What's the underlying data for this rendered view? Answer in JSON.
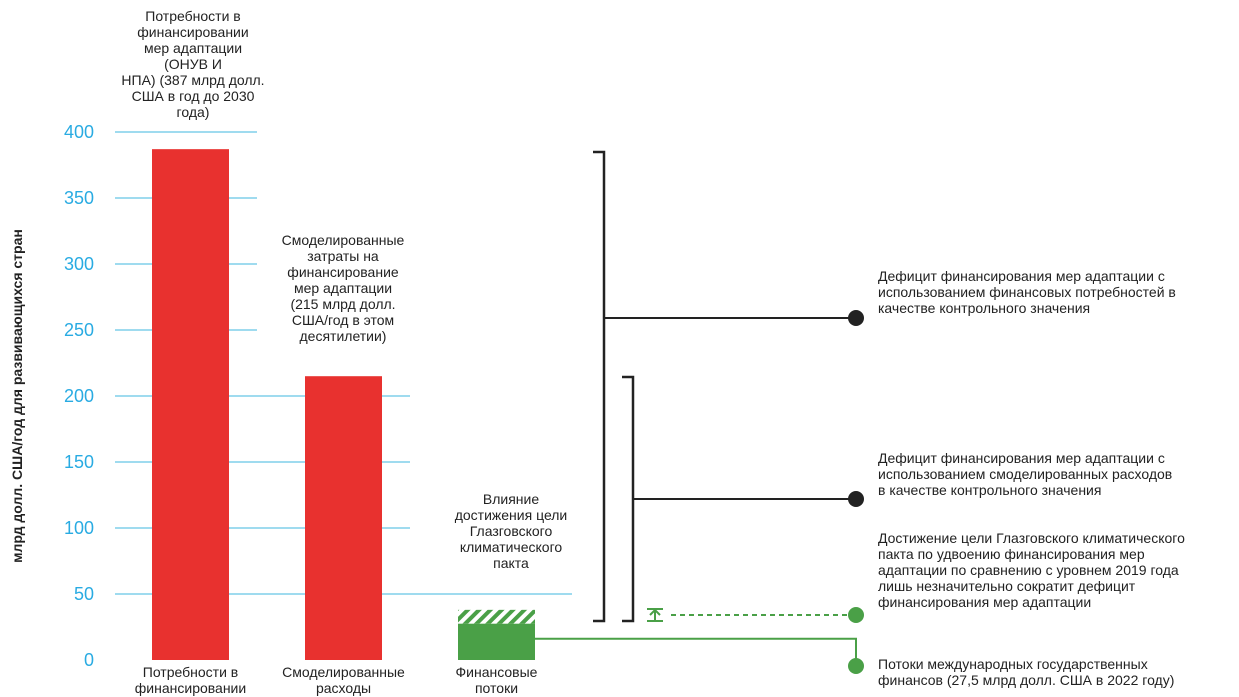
{
  "chart_data": {
    "type": "bar",
    "ylabel": "млрд долл. США/год для развивающихся стран",
    "ylim": [
      0,
      400
    ],
    "y_ticks": [
      0,
      50,
      100,
      150,
      200,
      250,
      300,
      350,
      400
    ],
    "categories": [
      "Потребности в финансировании",
      "Смоделированные расходы",
      "Финансовые потоки"
    ],
    "values": [
      387,
      215,
      27.5
    ],
    "glasgow_target": 38,
    "colors": {
      "bar": "#e8312f",
      "flow": "#4aa047",
      "grid": "#3fb7df",
      "tick": "#29abe2"
    },
    "bar_labels": [
      [
        "Потребности в",
        "финансировании",
        "мер адаптации",
        "(ОНУВ И",
        "НПА) (387 млрд долл.",
        "США в год до 2030",
        "года)"
      ],
      [
        "Смоделированные",
        "затраты на",
        "финансирование",
        "мер адаптации",
        "(215 млрд долл.",
        "США/год в этом",
        "десятилетии)"
      ],
      [
        "Влияние",
        "достижения цели",
        "Глазговского",
        "климатического",
        "пакта"
      ]
    ],
    "annotations": [
      [
        "Дефицит финансирования мер адаптации с",
        "использованием финансовых потребностей в",
        "качестве контрольного значения"
      ],
      [
        "Дефицит финансирования мер адаптации с",
        "использованием смоделированных расходов",
        "в качестве контрольного значения"
      ],
      [
        "Достижение цели Глазговского климатического",
        "пакта по удвоению финансирования мер",
        "адаптации по сравнению с уровнем 2019 года",
        "лишь незначительно сократит дефицит",
        "финансирования мер адаптации"
      ],
      [
        "Потоки международных государственных",
        "финансов (27,5 млрд долл. США в 2022 году)"
      ]
    ]
  }
}
